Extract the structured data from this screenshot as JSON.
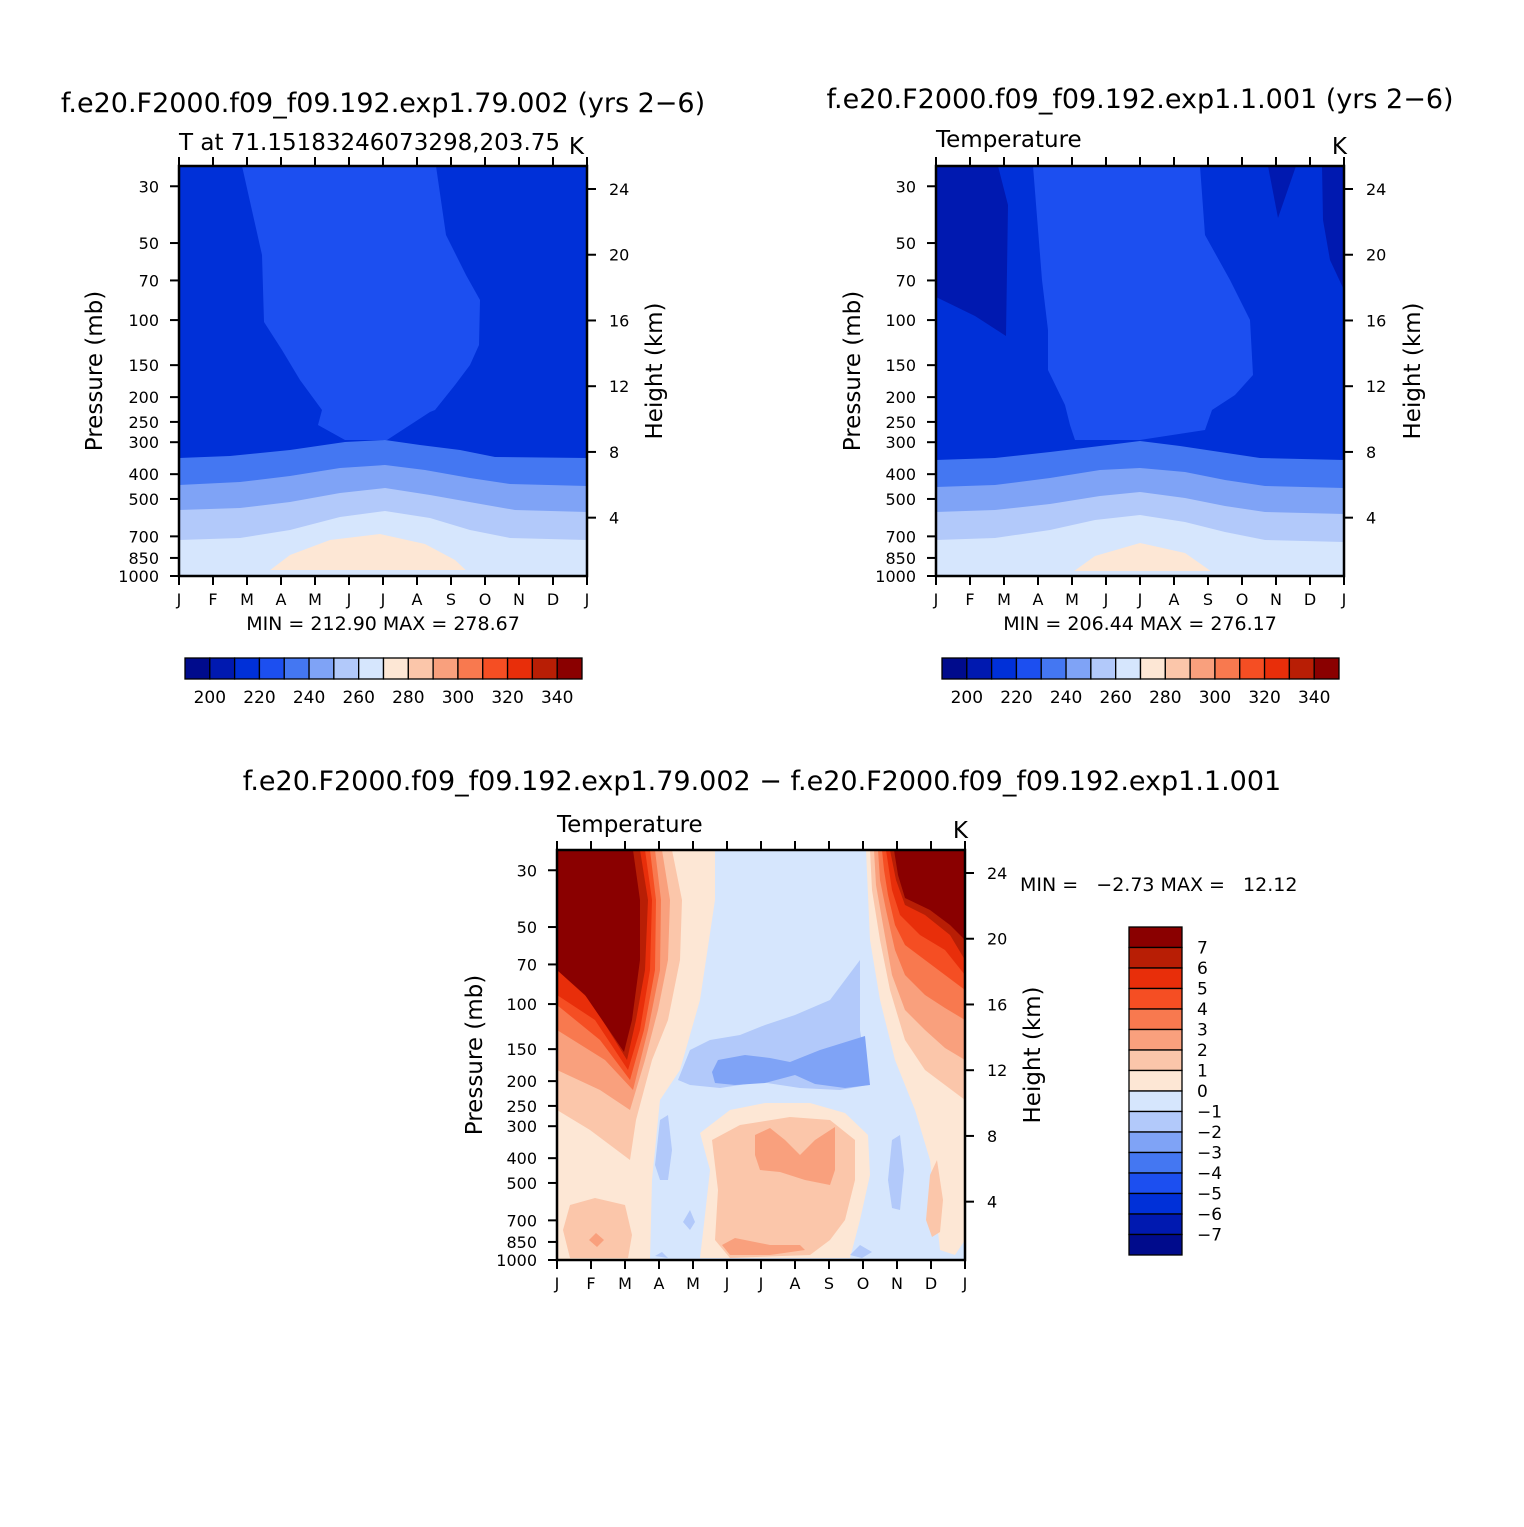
{
  "months": [
    "J",
    "F",
    "M",
    "A",
    "M",
    "J",
    "J",
    "A",
    "S",
    "O",
    "N",
    "D",
    "J"
  ],
  "pressure_ticks": [
    "30",
    "50",
    "70",
    "100",
    "150",
    "200",
    "250",
    "300",
    "400",
    "500",
    "700",
    "850",
    "1000"
  ],
  "pressure_values": [
    30,
    50,
    70,
    100,
    150,
    200,
    250,
    300,
    400,
    500,
    700,
    850,
    1000
  ],
  "height_ticks": [
    "4",
    "8",
    "12",
    "16",
    "20",
    "24"
  ],
  "height_values": [
    4,
    8,
    12,
    16,
    20,
    24
  ],
  "y_label": "Pressure (mb)",
  "y2_label": "Height (km)",
  "colors": {
    "cold": [
      "#000b8c",
      "#0019b0",
      "#0030d8",
      "#1c4ff0",
      "#4477f2",
      "#7fa3f6",
      "#b2c9fa",
      "#d6e6fd"
    ],
    "warm": [
      "#fde7d5",
      "#fbc6aa",
      "#f9a07d",
      "#f8794f",
      "#f54e23",
      "#e82e0a",
      "#b81e05",
      "#8a0000"
    ]
  },
  "chart_data": [
    {
      "type": "contour",
      "panel": "top-left",
      "title": "f.e20.F2000.f09_f09.192.exp1.79.002 (yrs 2−6)",
      "left_label": "T at 71.15183246073298,203.75",
      "units": "K",
      "min_label": "MIN = 212.90 MAX = 278.67",
      "min": 212.9,
      "max": 278.67,
      "colorbar_ticks": [
        "200",
        "220",
        "240",
        "260",
        "280",
        "300",
        "320",
        "340"
      ],
      "colorbar_levels": [
        200,
        210,
        220,
        230,
        240,
        250,
        260,
        270,
        280,
        290,
        300,
        310,
        320,
        330,
        340
      ],
      "approx_profile": {
        "pressure": [
          30,
          100,
          200,
          300,
          400,
          500,
          700,
          850,
          1000
        ],
        "winter": [
          213,
          214,
          214,
          217,
          232,
          241,
          250,
          256,
          260
        ],
        "summer": [
          221,
          222,
          223,
          229,
          250,
          258,
          266,
          273,
          277
        ]
      }
    },
    {
      "type": "contour",
      "panel": "top-right",
      "title": "f.e20.F2000.f09_f09.192.exp1.1.001 (yrs 2−6)",
      "left_label": "Temperature",
      "units": "K",
      "min_label": "MIN = 206.44 MAX = 276.17",
      "min": 206.44,
      "max": 276.17,
      "colorbar_ticks": [
        "200",
        "220",
        "240",
        "260",
        "280",
        "300",
        "320",
        "340"
      ],
      "colorbar_levels": [
        200,
        210,
        220,
        230,
        240,
        250,
        260,
        270,
        280,
        290,
        300,
        310,
        320,
        330,
        340
      ]
    },
    {
      "type": "contour",
      "panel": "bottom",
      "title": "f.e20.F2000.f09_f09.192.exp1.79.002 − f.e20.F2000.f09_f09.192.exp1.1.001",
      "left_label": "Temperature",
      "units": "K",
      "min_label": "MIN =   −2.73 MAX =   12.12",
      "min": -2.73,
      "max": 12.12,
      "colorbar_ticks": [
        "7",
        "6",
        "5",
        "4",
        "3",
        "2",
        "1",
        "0",
        "−1",
        "−2",
        "−3",
        "−4",
        "−5",
        "−6",
        "−7"
      ],
      "colorbar_levels": [
        -7,
        -6,
        -5,
        -4,
        -3,
        -2,
        -1,
        0,
        1,
        2,
        3,
        4,
        5,
        6,
        7
      ]
    }
  ]
}
